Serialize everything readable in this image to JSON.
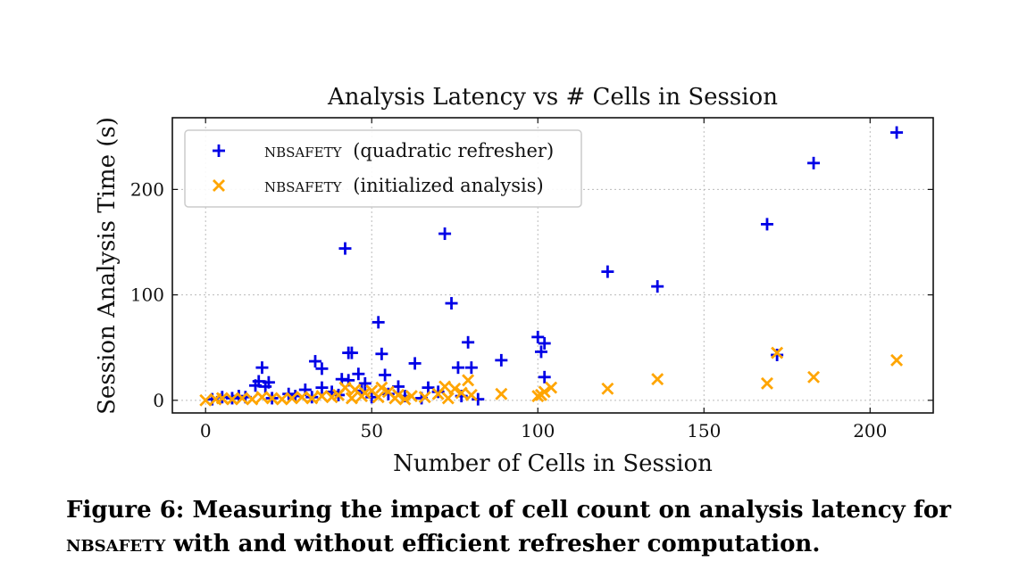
{
  "chart_data": {
    "type": "scatter",
    "title": "Analysis Latency vs # Cells in Session",
    "xlabel": "Number of Cells in Session",
    "ylabel": "Session Analysis Time (s)",
    "xlim": [
      -10,
      219
    ],
    "ylim": [
      -12,
      268
    ],
    "xticks": [
      0,
      50,
      100,
      150,
      200
    ],
    "yticks": [
      0,
      100,
      200
    ],
    "grid": true,
    "legend_position": "upper left",
    "series": [
      {
        "name_smallcaps": "NBSAFETY",
        "name_rest": "(quadratic refresher)",
        "marker": "plus",
        "color": "#0000e6",
        "points": [
          [
            208,
            254
          ],
          [
            183,
            225
          ],
          [
            169,
            167
          ],
          [
            121,
            122
          ],
          [
            136,
            108
          ],
          [
            72,
            158
          ],
          [
            42,
            144
          ],
          [
            74,
            92
          ],
          [
            52,
            74
          ],
          [
            100,
            60
          ],
          [
            102,
            54
          ],
          [
            101,
            46
          ],
          [
            79,
            55
          ],
          [
            172,
            43
          ],
          [
            43,
            45
          ],
          [
            44,
            45
          ],
          [
            53,
            44
          ],
          [
            89,
            38
          ],
          [
            102,
            22
          ],
          [
            33,
            37
          ],
          [
            63,
            35
          ],
          [
            17,
            31
          ],
          [
            76,
            31
          ],
          [
            80,
            31
          ],
          [
            35,
            30
          ],
          [
            46,
            25
          ],
          [
            54,
            24
          ],
          [
            16,
            18
          ],
          [
            19,
            17
          ],
          [
            41,
            20
          ],
          [
            43,
            19
          ],
          [
            48,
            16
          ],
          [
            15,
            14
          ],
          [
            18,
            13
          ],
          [
            35,
            12
          ],
          [
            58,
            13
          ],
          [
            67,
            12
          ],
          [
            30,
            10
          ],
          [
            5,
            3
          ],
          [
            10,
            4
          ],
          [
            25,
            6
          ],
          [
            38,
            8
          ],
          [
            47,
            9
          ],
          [
            55,
            6
          ],
          [
            70,
            8
          ],
          [
            82,
            1
          ],
          [
            2,
            1
          ],
          [
            8,
            2
          ],
          [
            12,
            3
          ],
          [
            20,
            2
          ],
          [
            27,
            4
          ],
          [
            32,
            3
          ],
          [
            40,
            5
          ],
          [
            50,
            3
          ],
          [
            60,
            4
          ],
          [
            65,
            2
          ],
          [
            77,
            4
          ]
        ]
      },
      {
        "name_smallcaps": "NBSAFETY",
        "name_rest": "(initialized analysis)",
        "marker": "x",
        "color": "#ffa500",
        "points": [
          [
            208,
            38
          ],
          [
            183,
            22
          ],
          [
            172,
            45
          ],
          [
            169,
            16
          ],
          [
            136,
            20
          ],
          [
            121,
            11
          ],
          [
            104,
            12
          ],
          [
            101,
            5
          ],
          [
            100,
            4
          ],
          [
            102,
            8
          ],
          [
            89,
            6
          ],
          [
            79,
            19
          ],
          [
            72,
            13
          ],
          [
            75,
            11
          ],
          [
            77,
            7
          ],
          [
            80,
            5
          ],
          [
            53,
            12
          ],
          [
            55,
            8
          ],
          [
            42,
            12
          ],
          [
            45,
            10
          ],
          [
            48,
            7
          ],
          [
            50,
            9
          ],
          [
            58,
            5
          ],
          [
            62,
            4
          ],
          [
            66,
            3
          ],
          [
            70,
            6
          ],
          [
            73,
            2
          ],
          [
            0,
            0
          ],
          [
            3,
            1
          ],
          [
            5,
            2
          ],
          [
            8,
            1
          ],
          [
            11,
            2
          ],
          [
            14,
            1
          ],
          [
            17,
            3
          ],
          [
            20,
            2
          ],
          [
            23,
            1
          ],
          [
            26,
            2
          ],
          [
            29,
            3
          ],
          [
            32,
            2
          ],
          [
            35,
            4
          ],
          [
            38,
            3
          ],
          [
            40,
            5
          ],
          [
            44,
            2
          ],
          [
            47,
            4
          ],
          [
            52,
            3
          ],
          [
            57,
            2
          ],
          [
            60,
            1
          ]
        ]
      }
    ]
  },
  "caption": {
    "label": "Figure 6: Measuring the impact of cell count on analysis latency for",
    "smallcaps": "NBSAFETY",
    "rest": " with and without efficient refresher computation."
  }
}
